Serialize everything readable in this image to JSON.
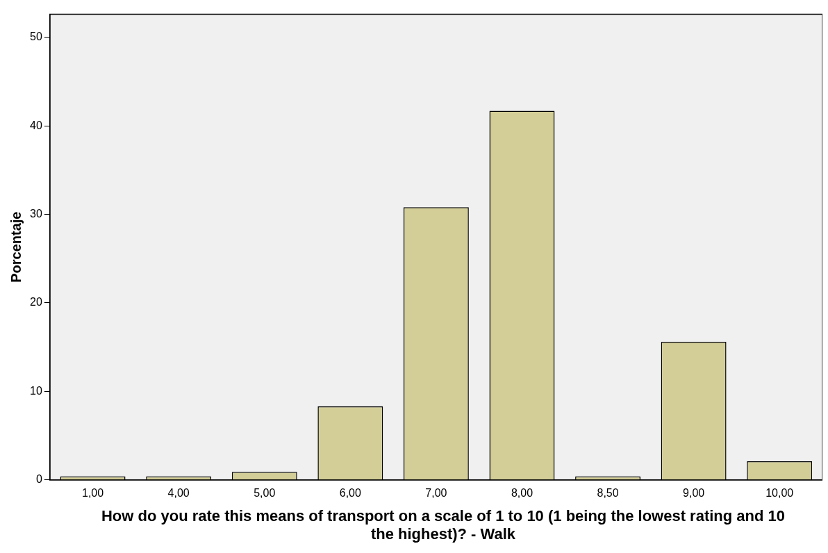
{
  "chart_data": {
    "type": "bar",
    "xlabel": "How do you rate this means of transport on a scale of 1 to 10 (1 being the lowest rating and 10 the highest)? - Walk",
    "ylabel": "Porcentaje",
    "categories": [
      "1,00",
      "4,00",
      "5,00",
      "6,00",
      "7,00",
      "8,00",
      "8,50",
      "9,00",
      "10,00"
    ],
    "values": [
      0.4,
      0.4,
      0.9,
      8.3,
      30.8,
      41.7,
      0.4,
      15.6,
      2.1
    ],
    "color": "#d3ce97",
    "ylim": [
      0,
      52.6
    ],
    "yticks": [
      0,
      10,
      20,
      30,
      40,
      50
    ],
    "grid": false,
    "legend": false
  }
}
